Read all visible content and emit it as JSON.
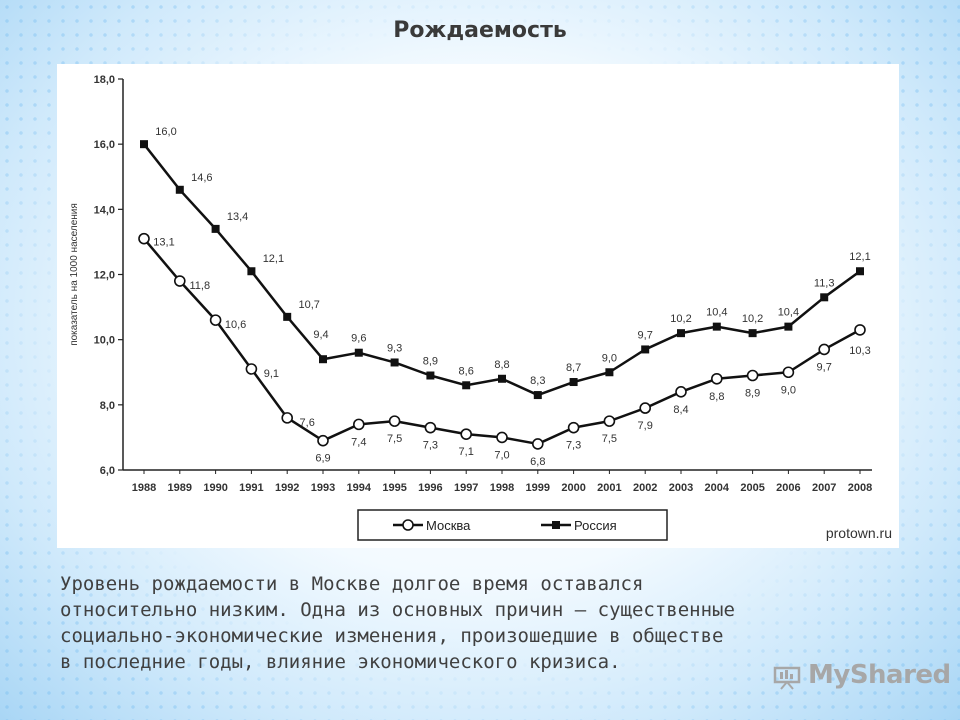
{
  "slide": {
    "title": "Рождаемость",
    "caption_lines": [
      "Уровень рождаемости в Москве долгое время оставался",
      "относительно низким. Одна из основных причин — существенные",
      "социально-экономические изменения, произошедшие в обществе",
      "в последние годы, влияние экономического кризиса."
    ],
    "logo": "MyShared",
    "source": "protown.ru"
  },
  "chart_data": {
    "type": "line",
    "title": "",
    "xlabel": "",
    "ylabel": "показатель на 1000 населения",
    "ylim": [
      6.0,
      18.0
    ],
    "yticks": [
      "6,0",
      "8,0",
      "10,0",
      "12,0",
      "14,0",
      "16,0",
      "18,0"
    ],
    "ytick_values": [
      6,
      8,
      10,
      12,
      14,
      16,
      18
    ],
    "categories": [
      "1988",
      "1989",
      "1990",
      "1991",
      "1992",
      "1993",
      "1994",
      "1995",
      "1996",
      "1997",
      "1998",
      "1999",
      "2000",
      "2001",
      "2002",
      "2003",
      "2004",
      "2005",
      "2006",
      "2007",
      "2008"
    ],
    "grid": false,
    "legend_position": "bottom",
    "series": [
      {
        "name": "Москва",
        "marker": "open-circle",
        "values": [
          13.1,
          11.8,
          10.6,
          9.1,
          7.6,
          6.9,
          7.4,
          7.5,
          7.3,
          7.1,
          7.0,
          6.8,
          7.3,
          7.5,
          7.9,
          8.4,
          8.8,
          8.9,
          9.0,
          9.7,
          10.3
        ],
        "labels": [
          "13,1",
          "11,8",
          "10,6",
          "9,1",
          "7,6",
          "6,9",
          "7,4",
          "7,5",
          "7,3",
          "7,1",
          "7,0",
          "6,8",
          "7,3",
          "7,5",
          "7,9",
          "8,4",
          "8,8",
          "8,9",
          "9,0",
          "9,7",
          "10,3"
        ]
      },
      {
        "name": "Россия",
        "marker": "filled-square",
        "values": [
          16.0,
          14.6,
          13.4,
          12.1,
          10.7,
          9.4,
          9.6,
          9.3,
          8.9,
          8.6,
          8.8,
          8.3,
          8.7,
          9.0,
          9.7,
          10.2,
          10.4,
          10.2,
          10.4,
          11.3,
          12.1
        ],
        "labels": [
          "16,0",
          "14,6",
          "13,4",
          "12,1",
          "10,7",
          "9,4",
          "9,6",
          "9,3",
          "8,9",
          "8,6",
          "8,8",
          "8,3",
          "8,7",
          "9,0",
          "9,7",
          "10,2",
          "10,4",
          "10,2",
          "10,4",
          "11,3",
          "12,1"
        ]
      }
    ]
  }
}
